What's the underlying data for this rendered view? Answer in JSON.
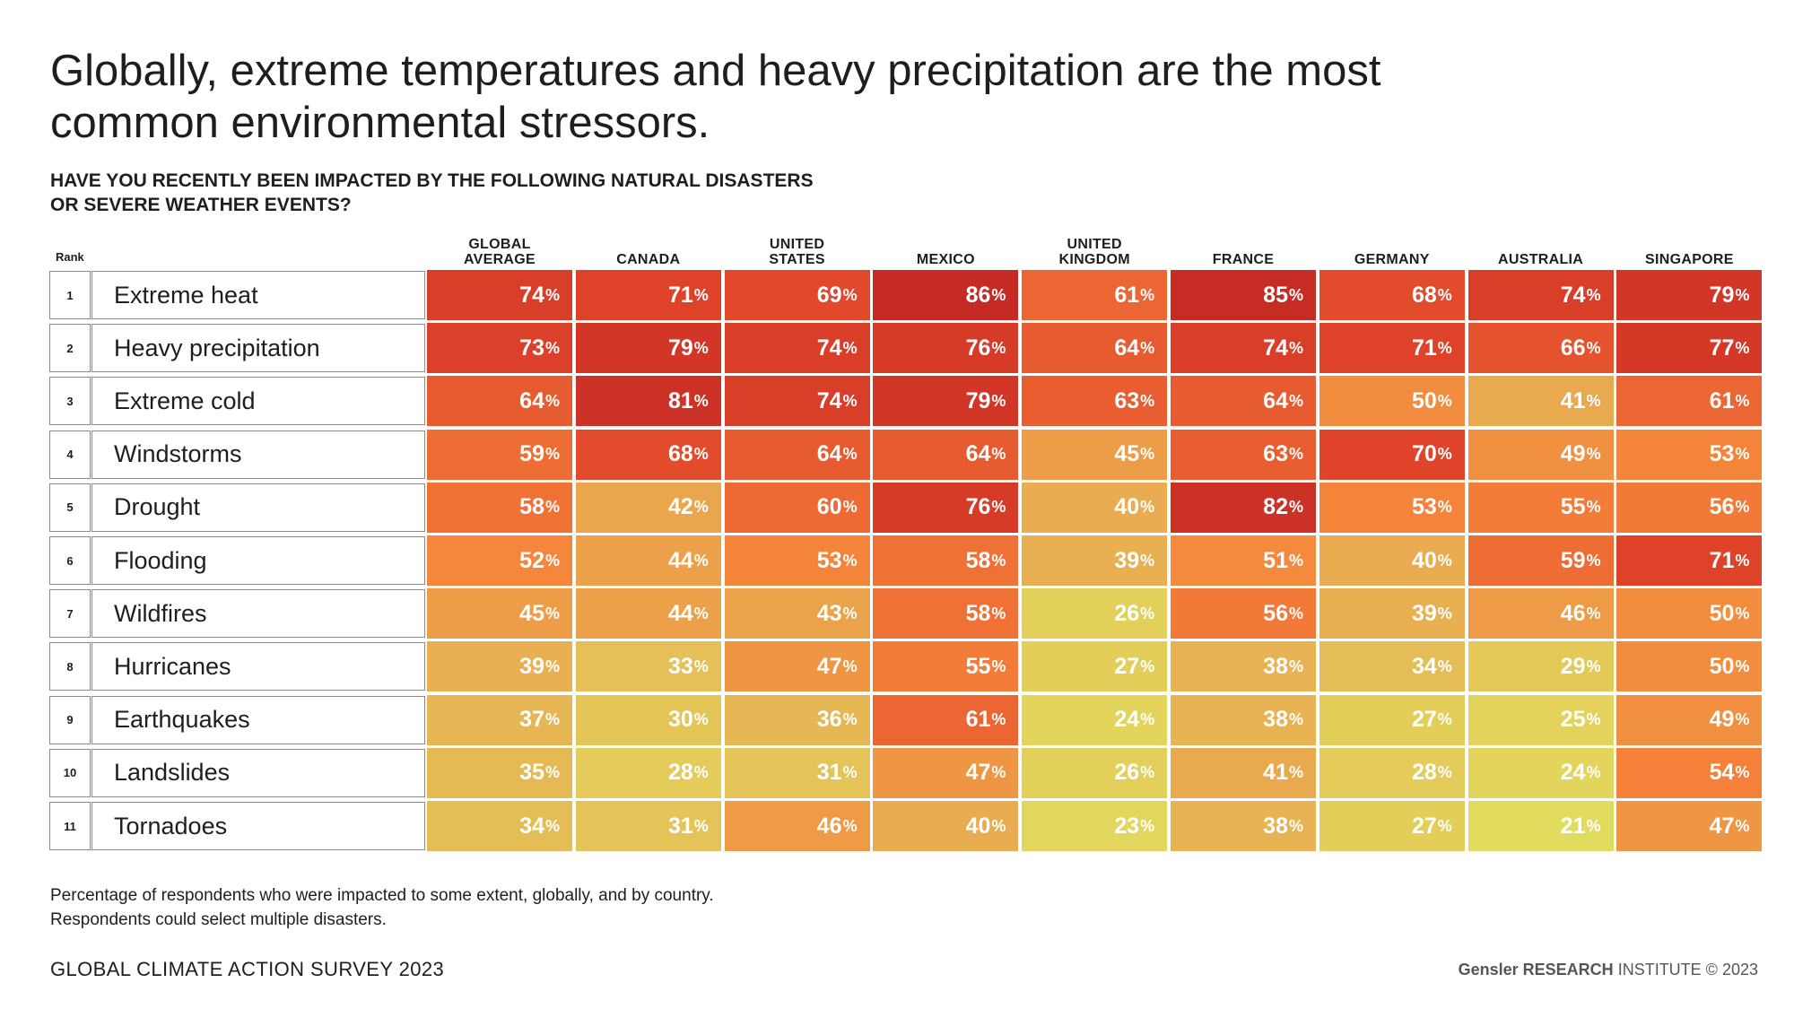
{
  "title": "Globally, extreme temperatures and heavy precipitation are the most common environmental stressors.",
  "subtitle_line1": "HAVE YOU RECENTLY BEEN IMPACTED BY THE FOLLOWING NATURAL DISASTERS",
  "subtitle_line2": "OR SEVERE WEATHER EVENTS?",
  "rank_label": "Rank",
  "footnote_line1": "Percentage of respondents who were impacted to some extent, globally, and by country.",
  "footnote_line2": "Respondents could select multiple disasters.",
  "survey_label": "GLOBAL CLIMATE ACTION SURVEY 2023",
  "credit_brand": "Gensler RESEARCH",
  "credit_rest": "INSTITUTE © 2023",
  "percent_symbol": "%",
  "chart_data": {
    "type": "heatmap",
    "title": "Globally, extreme temperatures and heavy precipitation are the most common environmental stressors.",
    "columns": [
      "GLOBAL\nAVERAGE",
      "CANADA",
      "UNITED\nSTATES",
      "MEXICO",
      "UNITED\nKINGDOM",
      "FRANCE",
      "GERMANY",
      "AUSTRALIA",
      "SINGAPORE"
    ],
    "rows": [
      {
        "rank": "1",
        "label": "Extreme heat",
        "values": [
          74,
          71,
          69,
          86,
          61,
          85,
          68,
          74,
          79
        ]
      },
      {
        "rank": "2",
        "label": "Heavy precipitation",
        "values": [
          73,
          79,
          74,
          76,
          64,
          74,
          71,
          66,
          77
        ]
      },
      {
        "rank": "3",
        "label": "Extreme cold",
        "values": [
          64,
          81,
          74,
          79,
          63,
          64,
          50,
          41,
          61
        ]
      },
      {
        "rank": "4",
        "label": "Windstorms",
        "values": [
          59,
          68,
          64,
          64,
          45,
          63,
          70,
          49,
          53
        ]
      },
      {
        "rank": "5",
        "label": "Drought",
        "values": [
          58,
          42,
          60,
          76,
          40,
          82,
          53,
          55,
          56
        ]
      },
      {
        "rank": "6",
        "label": "Flooding",
        "values": [
          52,
          44,
          53,
          58,
          39,
          51,
          40,
          59,
          71
        ]
      },
      {
        "rank": "7",
        "label": "Wildfires",
        "values": [
          45,
          44,
          43,
          58,
          26,
          56,
          39,
          46,
          50
        ]
      },
      {
        "rank": "8",
        "label": "Hurricanes",
        "values": [
          39,
          33,
          47,
          55,
          27,
          38,
          34,
          29,
          50
        ]
      },
      {
        "rank": "9",
        "label": "Earthquakes",
        "values": [
          37,
          30,
          36,
          61,
          24,
          38,
          27,
          25,
          49
        ]
      },
      {
        "rank": "10",
        "label": "Landslides",
        "values": [
          35,
          28,
          31,
          47,
          26,
          41,
          28,
          24,
          54
        ]
      },
      {
        "rank": "11",
        "label": "Tornadoes",
        "values": [
          34,
          31,
          46,
          40,
          23,
          38,
          27,
          21,
          47
        ]
      }
    ],
    "unit": "%",
    "color_scale": [
      "#e2dc5e",
      "#e6b554",
      "#f5823a",
      "#e0452b",
      "#c52a24"
    ]
  }
}
